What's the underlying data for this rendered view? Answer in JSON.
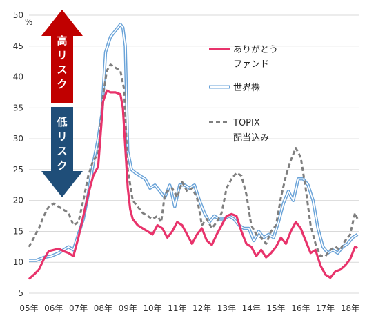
{
  "chart_data": {
    "type": "line",
    "ylabel": "%",
    "ylim": [
      5,
      50
    ],
    "yticks": [
      "5",
      "10",
      "15",
      "20",
      "25",
      "30",
      "35",
      "40",
      "45",
      "50"
    ],
    "xlim": [
      2005.0,
      2018.35
    ],
    "xtick_labels": [
      "05年",
      "06年",
      "07年",
      "08年",
      "09年",
      "10年",
      "11年",
      "12年",
      "13年",
      "14年",
      "15年",
      "16年",
      "17年",
      "18年"
    ],
    "grid": true,
    "legend_position": "right",
    "risk_labels": {
      "high": "高リスク",
      "low": "低リスク"
    },
    "series": [
      {
        "name": "ありがとうファンド",
        "legend_lines": [
          "ありがとう",
          "ファンド"
        ],
        "color": "#e8336b",
        "style": "solid",
        "x": [
          2005.0,
          2005.2,
          2005.4,
          2005.6,
          2005.8,
          2006.0,
          2006.2,
          2006.4,
          2006.6,
          2006.8,
          2007.0,
          2007.2,
          2007.4,
          2007.6,
          2007.8,
          2008.0,
          2008.15,
          2008.3,
          2008.5,
          2008.7,
          2008.8,
          2009.0,
          2009.1,
          2009.2,
          2009.4,
          2009.6,
          2009.8,
          2010.0,
          2010.2,
          2010.4,
          2010.6,
          2010.8,
          2011.0,
          2011.2,
          2011.4,
          2011.6,
          2011.8,
          2012.0,
          2012.2,
          2012.4,
          2012.6,
          2012.8,
          2013.0,
          2013.2,
          2013.4,
          2013.6,
          2013.8,
          2014.0,
          2014.2,
          2014.4,
          2014.6,
          2014.8,
          2015.0,
          2015.2,
          2015.4,
          2015.6,
          2015.8,
          2016.0,
          2016.2,
          2016.4,
          2016.6,
          2016.8,
          2017.0,
          2017.2,
          2017.4,
          2017.6,
          2017.8,
          2018.0,
          2018.2,
          2018.3
        ],
        "y": [
          7.3,
          8.0,
          8.8,
          10.5,
          11.8,
          12.0,
          12.2,
          11.8,
          11.5,
          11.0,
          14.0,
          17.5,
          21.0,
          24.0,
          25.5,
          36.0,
          37.8,
          37.5,
          37.5,
          37.2,
          35.0,
          22.0,
          18.5,
          17.0,
          16.0,
          15.5,
          15.0,
          14.5,
          16.0,
          15.5,
          14.0,
          15.0,
          16.5,
          16.0,
          14.5,
          13.0,
          14.5,
          15.5,
          13.5,
          12.8,
          14.5,
          16.0,
          17.5,
          17.8,
          17.5,
          15.0,
          13.0,
          12.5,
          11.0,
          12.0,
          10.8,
          11.5,
          12.5,
          14.0,
          13.0,
          15.0,
          16.5,
          15.5,
          13.5,
          11.5,
          12.0,
          9.5,
          8.0,
          7.5,
          8.5,
          8.8,
          9.5,
          10.5,
          12.5,
          12.3
        ]
      },
      {
        "name": "世界株",
        "legend_lines": [
          "世界株"
        ],
        "color": "#6aa3d8",
        "style": "double",
        "x": [
          2005.0,
          2005.3,
          2005.6,
          2005.9,
          2006.2,
          2006.4,
          2006.6,
          2006.8,
          2007.0,
          2007.2,
          2007.4,
          2007.6,
          2007.8,
          2007.95,
          2008.1,
          2008.3,
          2008.5,
          2008.7,
          2008.8,
          2008.9,
          2009.0,
          2009.15,
          2009.3,
          2009.5,
          2009.7,
          2009.9,
          2010.1,
          2010.3,
          2010.5,
          2010.7,
          2010.9,
          2011.1,
          2011.3,
          2011.5,
          2011.7,
          2011.9,
          2012.1,
          2012.3,
          2012.5,
          2012.7,
          2012.9,
          2013.1,
          2013.3,
          2013.5,
          2013.7,
          2013.9,
          2014.1,
          2014.3,
          2014.5,
          2014.7,
          2014.9,
          2015.1,
          2015.3,
          2015.5,
          2015.7,
          2015.9,
          2016.1,
          2016.3,
          2016.5,
          2016.7,
          2016.9,
          2017.1,
          2017.3,
          2017.5,
          2017.7,
          2017.9,
          2018.1,
          2018.3
        ],
        "y": [
          10.3,
          10.3,
          10.8,
          11.0,
          11.5,
          12.0,
          12.5,
          12.0,
          14.5,
          17.0,
          21.0,
          26.0,
          30.0,
          34.0,
          44.0,
          46.5,
          47.5,
          48.5,
          48.0,
          45.0,
          28.0,
          25.0,
          24.5,
          24.0,
          23.5,
          22.0,
          22.5,
          21.5,
          20.5,
          22.5,
          19.0,
          22.5,
          22.5,
          22.0,
          22.5,
          20.0,
          18.0,
          16.5,
          17.5,
          17.0,
          17.0,
          17.5,
          17.0,
          16.0,
          15.5,
          15.5,
          13.5,
          15.0,
          14.0,
          14.5,
          14.0,
          16.5,
          19.5,
          21.5,
          20.0,
          23.5,
          23.5,
          22.5,
          20.0,
          15.5,
          12.5,
          11.5,
          12.0,
          11.5,
          12.5,
          13.0,
          14.0,
          14.5
        ]
      },
      {
        "name": "TOPIX配当込み",
        "legend_lines": [
          "TOPIX",
          "配当込み"
        ],
        "color": "#7f7f7f",
        "style": "dashed",
        "x": [
          2005.0,
          2005.2,
          2005.4,
          2005.6,
          2005.8,
          2006.0,
          2006.2,
          2006.4,
          2006.6,
          2006.8,
          2007.0,
          2007.2,
          2007.4,
          2007.6,
          2007.8,
          2008.0,
          2008.15,
          2008.3,
          2008.5,
          2008.7,
          2008.85,
          2009.0,
          2009.2,
          2009.4,
          2009.6,
          2009.8,
          2010.0,
          2010.2,
          2010.35,
          2010.5,
          2010.6,
          2010.8,
          2011.0,
          2011.2,
          2011.4,
          2011.6,
          2011.8,
          2012.0,
          2012.2,
          2012.4,
          2012.6,
          2012.8,
          2013.0,
          2013.2,
          2013.4,
          2013.6,
          2013.8,
          2014.0,
          2014.2,
          2014.4,
          2014.6,
          2014.8,
          2015.0,
          2015.2,
          2015.4,
          2015.6,
          2015.8,
          2016.0,
          2016.2,
          2016.4,
          2016.6,
          2016.8,
          2017.0,
          2017.2,
          2017.4,
          2017.6,
          2017.8,
          2018.0,
          2018.2,
          2018.3
        ],
        "y": [
          12.5,
          14.0,
          15.5,
          17.5,
          19.0,
          19.5,
          19.0,
          18.5,
          18.0,
          16.0,
          16.5,
          20.0,
          24.0,
          26.5,
          27.5,
          37.0,
          41.0,
          42.0,
          41.5,
          41.0,
          38.0,
          25.0,
          20.0,
          19.0,
          18.0,
          17.5,
          17.0,
          17.5,
          16.5,
          21.0,
          21.5,
          22.0,
          20.5,
          23.0,
          21.5,
          22.0,
          20.5,
          16.0,
          17.0,
          15.5,
          16.5,
          18.0,
          22.0,
          23.5,
          24.5,
          24.0,
          21.0,
          16.0,
          14.5,
          14.0,
          13.0,
          15.0,
          16.0,
          20.5,
          24.0,
          26.5,
          28.5,
          27.0,
          22.0,
          16.0,
          13.0,
          11.0,
          11.0,
          12.0,
          12.5,
          12.0,
          13.5,
          14.5,
          18.0,
          17.0
        ]
      }
    ]
  }
}
